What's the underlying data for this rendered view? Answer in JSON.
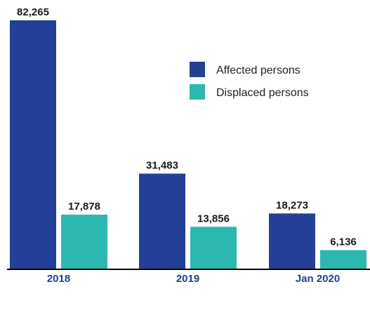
{
  "chart_data": {
    "type": "bar",
    "categories": [
      "2018",
      "2019",
      "Jan 2020"
    ],
    "series": [
      {
        "name": "Affected persons",
        "color": "#233f96",
        "values": [
          82265,
          31483,
          18273
        ],
        "labels": [
          "82,265",
          "31,483",
          "18,273"
        ]
      },
      {
        "name": "Displaced persons",
        "color": "#2cb8b0",
        "values": [
          17878,
          13856,
          6136
        ],
        "labels": [
          "17,878",
          "13,856",
          "6,136"
        ]
      }
    ],
    "ylim": [
      0,
      82265
    ],
    "grid": false,
    "legend_position": "upper-right",
    "category_label_color": "#233f96",
    "axis_color": "#000000"
  }
}
